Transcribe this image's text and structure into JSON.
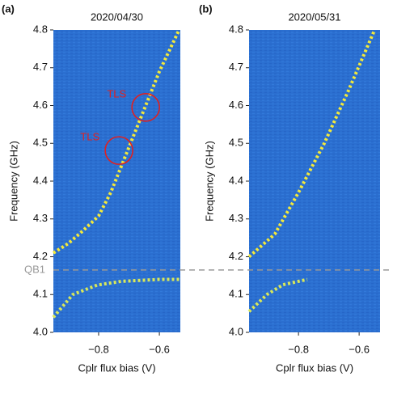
{
  "chart_data": [
    {
      "type": "line",
      "panel_label": "(a)",
      "title": "2020/04/30",
      "xlabel": "Cplr flux bias (V)",
      "ylabel": "Frequency (GHz)",
      "xlim": [
        -0.949,
        -0.531
      ],
      "ylim": [
        4.0,
        4.8
      ],
      "xticks": [
        {
          "value": -0.8,
          "label": "−0.8"
        },
        {
          "value": -0.6,
          "label": "−0.6"
        }
      ],
      "yticks": [
        {
          "value": 4.0,
          "label": "4.0"
        },
        4.1,
        4.2,
        4.3,
        4.4,
        4.5,
        4.6,
        4.7,
        4.8
      ],
      "background": "#2b6fd0",
      "series": [
        {
          "color": "#f4ea3a",
          "x": [
            -0.949,
            -0.9,
            -0.85,
            -0.8,
            -0.76,
            -0.725,
            -0.69,
            -0.645,
            -0.6,
            -0.535
          ],
          "y": [
            4.21,
            4.235,
            4.27,
            4.308,
            4.37,
            4.44,
            4.51,
            4.6,
            4.69,
            4.8
          ]
        },
        {
          "color": "#d8e85a",
          "x": [
            -0.949,
            -0.885,
            -0.805,
            -0.725,
            -0.6,
            -0.531
          ],
          "y": [
            4.04,
            4.1,
            4.125,
            4.135,
            4.14,
            4.14
          ]
        }
      ],
      "annotations": [
        {
          "text": "TLS",
          "x": -0.645,
          "y": 4.595,
          "color": "#e02020"
        },
        {
          "text": "TLS",
          "x": -0.733,
          "y": 4.481,
          "color": "#e02020"
        }
      ]
    },
    {
      "type": "line",
      "panel_label": "(b)",
      "title": "2020/05/31",
      "xlabel": "Cplr flux bias (V)",
      "ylabel": "Frequency (GHz)",
      "xlim": [
        -0.963,
        -0.531
      ],
      "ylim": [
        4.0,
        4.8
      ],
      "xticks": [
        {
          "value": -0.8,
          "label": "−0.8"
        },
        {
          "value": -0.6,
          "label": "−0.6"
        }
      ],
      "yticks": [
        {
          "value": 4.0,
          "label": "4.0"
        },
        4.1,
        4.2,
        4.3,
        4.4,
        4.5,
        4.6,
        4.7,
        4.8
      ],
      "background": "#2b6fd0",
      "series": [
        {
          "color": "#f4ea3a",
          "x": [
            -0.963,
            -0.878,
            -0.8,
            -0.715,
            -0.635,
            -0.549
          ],
          "y": [
            4.2,
            4.26,
            4.37,
            4.5,
            4.64,
            4.8
          ]
        },
        {
          "color": "#d8e85a",
          "x": [
            -0.963,
            -0.904,
            -0.851,
            -0.771
          ],
          "y": [
            4.055,
            4.1,
            4.126,
            4.14
          ]
        }
      ],
      "annotations": []
    }
  ],
  "reference_line": {
    "label": "QB1",
    "value": 4.165,
    "color": "#999999"
  }
}
